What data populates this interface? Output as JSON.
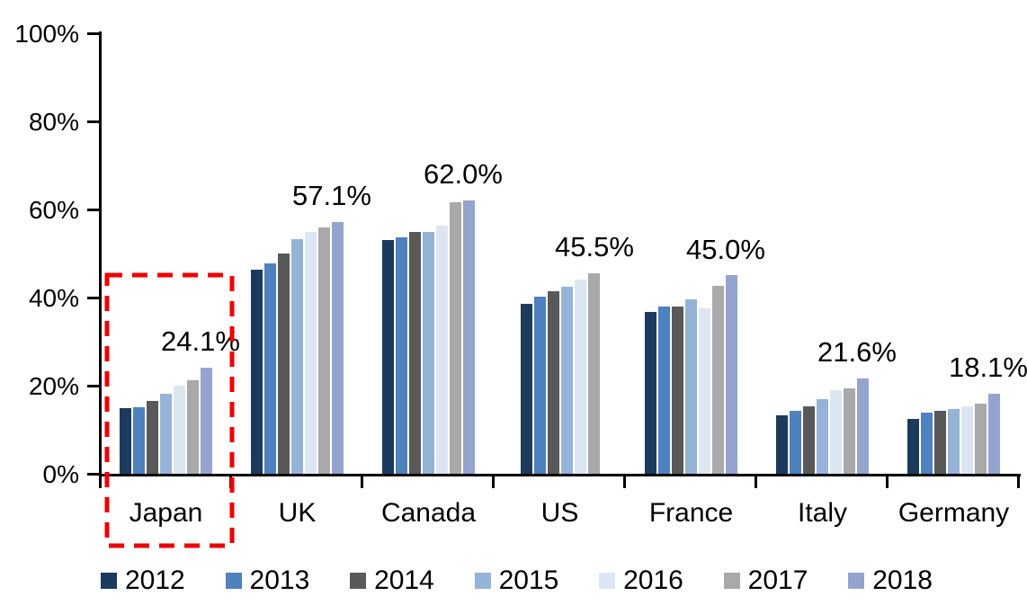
{
  "chart_data": {
    "type": "bar",
    "title": "",
    "xlabel": "",
    "ylabel": "",
    "ylim": [
      0,
      100
    ],
    "yticks": [
      "0%",
      "20%",
      "40%",
      "60%",
      "80%",
      "100%"
    ],
    "grid": false,
    "legend_position": "bottom",
    "categories": [
      "Japan",
      "UK",
      "Canada",
      "US",
      "France",
      "Italy",
      "Germany"
    ],
    "series": [
      {
        "name": "2012",
        "color": "#1C3A5E",
        "values": [
          14.9,
          46.3,
          53.1,
          38.6,
          36.8,
          13.3,
          12.4
        ]
      },
      {
        "name": "2013",
        "color": "#4E81BD",
        "values": [
          15.1,
          47.8,
          53.6,
          40.3,
          37.9,
          14.2,
          13.9
        ]
      },
      {
        "name": "2014",
        "color": "#595959",
        "values": [
          16.6,
          50.0,
          54.9,
          41.4,
          37.9,
          15.4,
          14.2
        ]
      },
      {
        "name": "2015",
        "color": "#95B3D7",
        "values": [
          18.2,
          53.3,
          54.8,
          42.5,
          39.5,
          17.0,
          14.7
        ]
      },
      {
        "name": "2016",
        "color": "#DCE6F2",
        "values": [
          20.0,
          54.9,
          56.3,
          44.0,
          37.5,
          19.0,
          15.3
        ]
      },
      {
        "name": "2017",
        "color": "#A9A9A9",
        "values": [
          21.2,
          55.9,
          61.6,
          45.5,
          42.6,
          19.3,
          15.9
        ]
      },
      {
        "name": "2018",
        "color": "#94A4CF",
        "values": [
          24.1,
          57.1,
          62.0,
          null,
          45.0,
          21.6,
          18.1
        ]
      }
    ],
    "group_labels": [
      "24.1%",
      "57.1%",
      "62.0%",
      "45.5%",
      "45.0%",
      "21.6%",
      "18.1%"
    ],
    "annotations": {
      "highlight_category": "Japan",
      "highlight_style": "red-dashed-box",
      "highlight_color": "#EE0202"
    }
  }
}
